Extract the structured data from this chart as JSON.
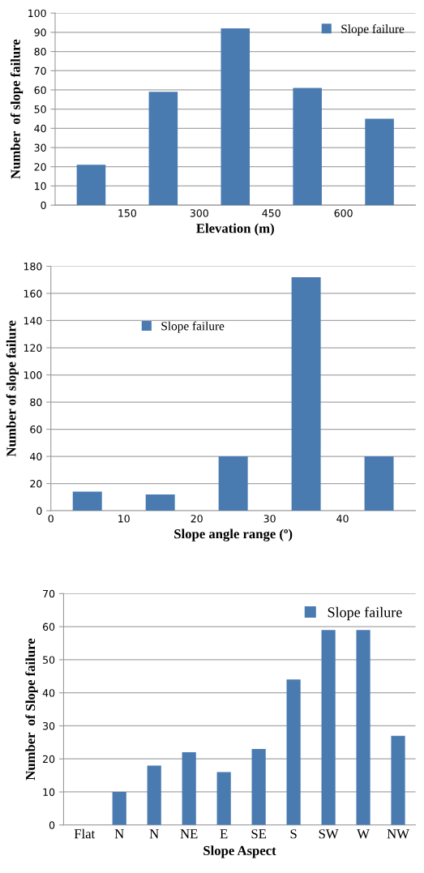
{
  "chart_data": [
    {
      "type": "histogram",
      "xlabel": "Elevation (m)",
      "ylabel": "Number  of slope failure",
      "bins": [
        0,
        150,
        300,
        450,
        600,
        750
      ],
      "series": [
        {
          "name": "Slope failure",
          "color": "#4a7bb0",
          "values": [
            21,
            59,
            92,
            61,
            45
          ]
        }
      ],
      "xlim": [
        0,
        750
      ],
      "xticks": [
        150,
        300,
        450,
        600
      ],
      "ylim": [
        0,
        100
      ],
      "yticks": [
        0,
        10,
        20,
        30,
        40,
        50,
        60,
        70,
        80,
        90,
        100
      ],
      "grid": "y",
      "legend": "top right"
    },
    {
      "type": "histogram",
      "xlabel": "Slope angle range (º)",
      "ylabel": "Number of slope failure",
      "bins": [
        0,
        10,
        20,
        30,
        40,
        50
      ],
      "series": [
        {
          "name": "Slope failure",
          "color": "#4a7bb0",
          "values": [
            14,
            12,
            40,
            172,
            40
          ]
        }
      ],
      "xlim": [
        0,
        50
      ],
      "xticks": [
        0,
        10,
        20,
        30,
        40
      ],
      "ylim": [
        0,
        180
      ],
      "yticks": [
        0,
        20,
        40,
        60,
        80,
        100,
        120,
        140,
        160,
        180
      ],
      "grid": "y",
      "legend": "top left"
    },
    {
      "type": "bar",
      "xlabel": "Slope Aspect",
      "ylabel": "Number  of Slope failure",
      "categories": [
        "Flat",
        "N",
        "N",
        "NE",
        "E",
        "SE",
        "S",
        "SW",
        "W",
        "NW"
      ],
      "series": [
        {
          "name": "Slope failure",
          "color": "#4a7bb0",
          "values": [
            0,
            10,
            18,
            22,
            16,
            23,
            44,
            59,
            59,
            27
          ]
        }
      ],
      "ylim": [
        0,
        70
      ],
      "yticks": [
        0,
        10,
        20,
        30,
        40,
        50,
        60,
        70
      ],
      "grid": "y",
      "legend": "top right"
    }
  ]
}
